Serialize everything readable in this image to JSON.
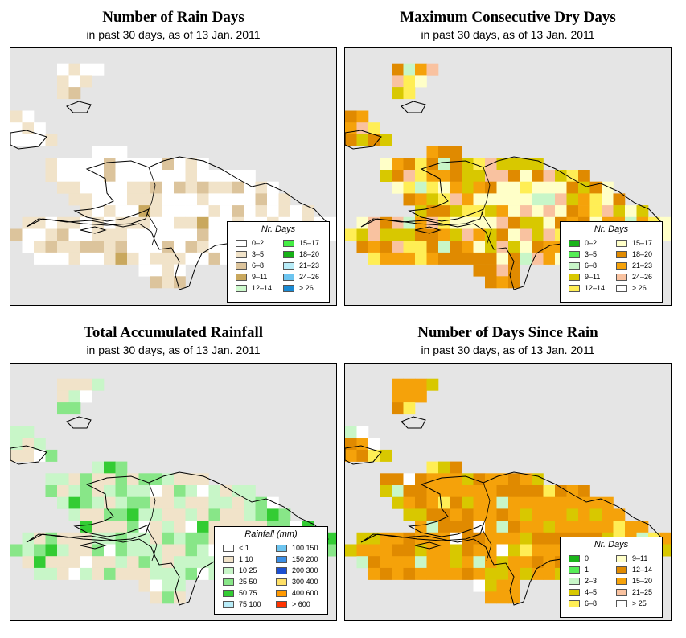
{
  "panels": [
    {
      "title": "Number of Rain Days",
      "subtitle": "in past 30 days, as of  13 Jan. 2011",
      "legend_title": "Nr. Days",
      "legend": [
        {
          "label": "0–2",
          "color": "#ffffff"
        },
        {
          "label": "3–5",
          "color": "#f1e3c9"
        },
        {
          "label": "6–8",
          "color": "#dcc49c"
        },
        {
          "label": "9–11",
          "color": "#c9a85e"
        },
        {
          "label": "12–14",
          "color": "#cdfacd"
        },
        {
          "label": "15–17",
          "color": "#44ee44"
        },
        {
          "label": "18–20",
          "color": "#16b216"
        },
        {
          "label": "21–23",
          "color": "#b8ecf8"
        },
        {
          "label": "24–26",
          "color": "#6dc5f0"
        },
        {
          "label": "> 26",
          "color": "#1a8ad4"
        }
      ]
    },
    {
      "title": "Maximum Consecutive Dry Days",
      "subtitle": "in past 30 days, as of  13 Jan. 2011",
      "legend_title": "Nr. Days",
      "legend": [
        {
          "label": "0–2",
          "color": "#1ab41a"
        },
        {
          "label": "3–5",
          "color": "#55ee55"
        },
        {
          "label": "6–8",
          "color": "#c8f6c8"
        },
        {
          "label": "9–11",
          "color": "#d8c800"
        },
        {
          "label": "12–14",
          "color": "#ffee55"
        },
        {
          "label": "15–17",
          "color": "#ffffc8"
        },
        {
          "label": "18–20",
          "color": "#e08a00"
        },
        {
          "label": "21–23",
          "color": "#f5a20a"
        },
        {
          "label": "24–26",
          "color": "#f9c2a0"
        },
        {
          "label": "> 26",
          "color": "#ffffff"
        }
      ]
    },
    {
      "title": "Total Accumulated Rainfall",
      "subtitle": "in past 30 days, as of  13 Jan. 2011",
      "legend_title": "Rainfall (mm)",
      "legend": [
        {
          "label": "< 1",
          "color": "#ffffff"
        },
        {
          "label": "1    10",
          "color": "#f1e3c9"
        },
        {
          "label": "10    25",
          "color": "#c8f6c8"
        },
        {
          "label": "25    50",
          "color": "#88e688"
        },
        {
          "label": "50    75",
          "color": "#33cc33"
        },
        {
          "label": "75  100",
          "color": "#b8ecf8"
        },
        {
          "label": "100  150",
          "color": "#6dc5f0"
        },
        {
          "label": "150  200",
          "color": "#3a8ee6"
        },
        {
          "label": "200  300",
          "color": "#1c4fd0"
        },
        {
          "label": "300  400",
          "color": "#ffe066"
        },
        {
          "label": "400  600",
          "color": "#ff9900"
        },
        {
          "label": "> 600",
          "color": "#ff3300"
        }
      ]
    },
    {
      "title": "Number of Days Since Rain",
      "subtitle": "in past 30 days, as of  13 Jan. 2011",
      "legend_title": "Nr. Days",
      "legend": [
        {
          "label": "0",
          "color": "#1ab41a"
        },
        {
          "label": "1",
          "color": "#55ee55"
        },
        {
          "label": "2–3",
          "color": "#c8f6c8"
        },
        {
          "label": "4–5",
          "color": "#d8c800"
        },
        {
          "label": "6–8",
          "color": "#ffee55"
        },
        {
          "label": "9–11",
          "color": "#ffffc8"
        },
        {
          "label": "12–14",
          "color": "#e08a00"
        },
        {
          "label": "15–20",
          "color": "#f5a20a"
        },
        {
          "label": "21–25",
          "color": "#f9c2a0"
        },
        {
          "label": "> 25",
          "color": "#ffffff"
        }
      ]
    }
  ]
}
